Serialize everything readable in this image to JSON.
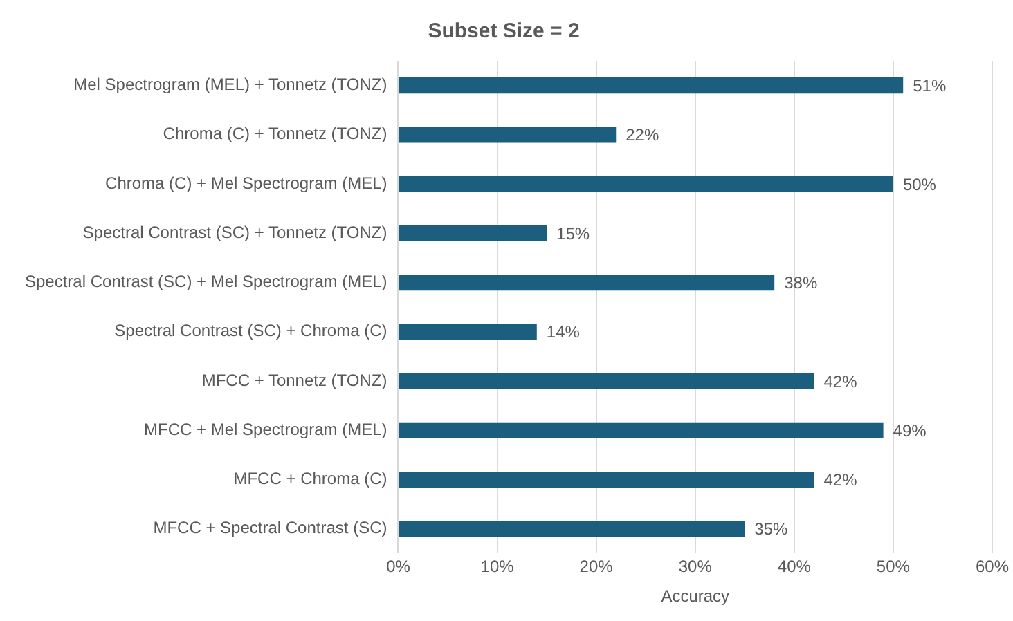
{
  "chart_data": {
    "type": "bar",
    "orientation": "horizontal",
    "title": "Subset Size = 2",
    "xlabel": "Accuracy",
    "categories": [
      "Mel Spectrogram (MEL) + Tonnetz (TONZ)",
      "Chroma (C) + Tonnetz (TONZ)",
      "Chroma (C) + Mel Spectrogram (MEL)",
      "Spectral Contrast (SC) + Tonnetz (TONZ)",
      "Spectral Contrast (SC) + Mel Spectrogram (MEL)",
      "Spectral Contrast (SC) + Chroma (C)",
      "MFCC + Tonnetz (TONZ)",
      "MFCC + Mel Spectrogram (MEL)",
      "MFCC + Chroma (C)",
      "MFCC + Spectral Contrast (SC)"
    ],
    "values": [
      51,
      22,
      50,
      15,
      38,
      14,
      42,
      49,
      42,
      35
    ],
    "value_labels": [
      "51%",
      "22%",
      "50%",
      "15%",
      "38%",
      "14%",
      "42%",
      "49%",
      "42%",
      "35%"
    ],
    "color": "#1b5e7e",
    "xlim": [
      0,
      60
    ],
    "xticks": [
      {
        "value": 0,
        "label": "0%"
      },
      {
        "value": 10,
        "label": "10%"
      },
      {
        "value": 20,
        "label": "20%"
      },
      {
        "value": 30,
        "label": "30%"
      },
      {
        "value": 40,
        "label": "40%"
      },
      {
        "value": 50,
        "label": "50%"
      },
      {
        "value": 60,
        "label": "60%"
      }
    ],
    "grid": "x",
    "legend": false
  }
}
